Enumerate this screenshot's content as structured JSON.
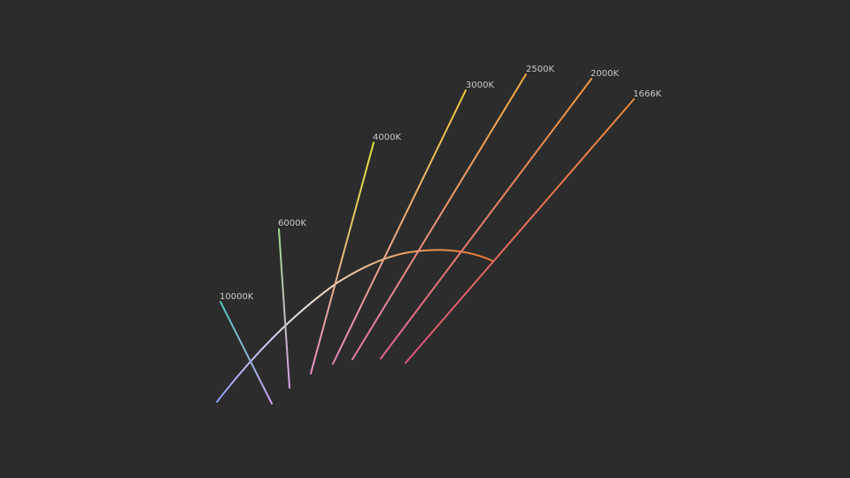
{
  "diagram": {
    "type": "planckian-locus-isotherms",
    "background": "#2c2c2c",
    "label_color": "#c8c8c8",
    "locus": {
      "colors": [
        "#8f9cf0",
        "#c9c6ee",
        "#e9dcd2",
        "#e9c29c",
        "#e99a58",
        "#e77a34"
      ]
    },
    "isotherms": [
      {
        "label": "10000K",
        "color_top": "#4fc9b9",
        "color_bottom": "#c8a0f0"
      },
      {
        "label": "6000K",
        "color_top": "#9ddc8c",
        "color_bottom": "#d9a0e6"
      },
      {
        "label": "4000K",
        "color_top": "#e0e23c",
        "color_bottom": "#e890c4"
      },
      {
        "label": "3000K",
        "color_top": "#f0cc3c",
        "color_bottom": "#e888bc"
      },
      {
        "label": "2500K",
        "color_top": "#f0ae3c",
        "color_bottom": "#e47aaa"
      },
      {
        "label": "2000K",
        "color_top": "#ee9a3e",
        "color_bottom": "#e26494"
      },
      {
        "label": "1666K",
        "color_top": "#ec8a3a",
        "color_bottom": "#e0507a"
      }
    ]
  }
}
